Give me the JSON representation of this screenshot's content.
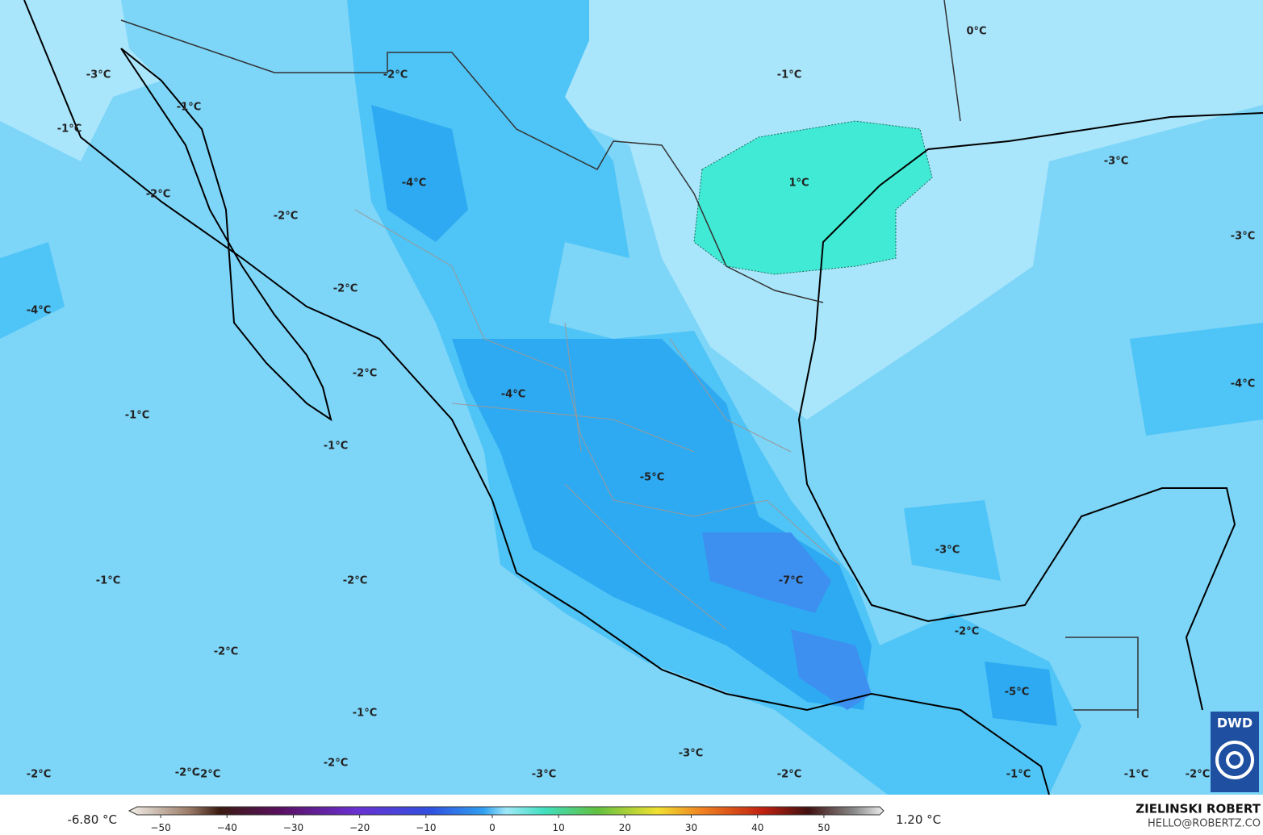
{
  "labels": [
    "0°C",
    "-3°C",
    "-2°C",
    "-1°C",
    "-1°C",
    "-1°C",
    "-4°C",
    "1°C",
    "-3°C",
    "-2°C",
    "-2°C",
    "-3°C",
    "-2°C",
    "-4°C",
    "-2°C",
    "-4°C",
    "-4°C",
    "-1°C",
    "-1°C",
    "-5°C",
    "-3°C",
    "-1°C",
    "-2°C",
    "-7°C",
    "-2°C",
    "-2°C",
    "-5°C",
    "-1°C",
    "-3°C",
    "-2°C",
    "-2°C",
    "-2°C",
    "-2°C",
    "-3°C",
    "-2°C",
    "-1°C",
    "-1°C",
    "-2°C"
  ],
  "colorbar": {
    "min_label": "-6.80 °C",
    "max_label": "1.20 °C",
    "lim": [
      -55,
      55
    ],
    "ticks": [
      {
        "value": -50,
        "label": "−50"
      },
      {
        "value": -40,
        "label": "−40"
      },
      {
        "value": -30,
        "label": "−30"
      },
      {
        "value": -20,
        "label": "−20"
      },
      {
        "value": -10,
        "label": "−10"
      },
      0,
      10,
      20,
      30,
      40,
      50
    ]
  },
  "credit": {
    "name": "ZIELINSKI ROBERT",
    "email": "HELLO@ROBERTZ.CO",
    "logo": "DWD"
  }
}
